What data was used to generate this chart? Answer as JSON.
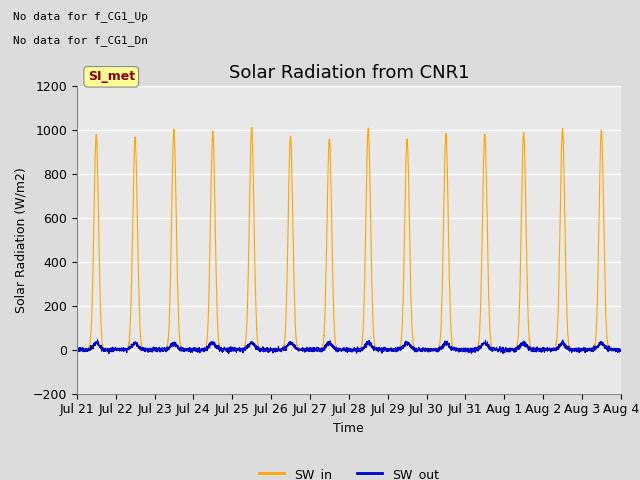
{
  "title": "Solar Radiation from CNR1",
  "xlabel": "Time",
  "ylabel": "Solar Radiation (W/m2)",
  "ylim": [
    -200,
    1200
  ],
  "yticks": [
    -200,
    0,
    200,
    400,
    600,
    800,
    1000,
    1200
  ],
  "num_days": 14,
  "sw_in_peak": [
    980,
    970,
    1000,
    990,
    1010,
    970,
    960,
    1010,
    960,
    980,
    980,
    990,
    1000,
    1000
  ],
  "sw_in_color": "#FFA500",
  "sw_out_color": "#0000CC",
  "fig_bg_color": "#DCDCDC",
  "plot_bg_color": "#E8E8E8",
  "title_fontsize": 13,
  "axis_label_fontsize": 9,
  "tick_fontsize": 9,
  "legend_labels": [
    "SW_in",
    "SW_out"
  ],
  "no_data_text1": "No data for f_CG1_Up",
  "no_data_text2": "No data for f_CG1_Dn",
  "si_met_label": "SI_met",
  "x_tick_labels": [
    "Jul 21",
    "Jul 22",
    "Jul 23",
    "Jul 24",
    "Jul 25",
    "Jul 26",
    "Jul 27",
    "Jul 28",
    "Jul 29",
    "Jul 30",
    "Jul 31",
    "Aug 1",
    "Aug 2",
    "Aug 3",
    "Aug 4"
  ],
  "grid_color": "white",
  "grid_linewidth": 1.0,
  "sw_in_sigma": 0.06,
  "sw_out_peak": 30,
  "sw_out_sigma": 0.08,
  "points_per_day": 288
}
